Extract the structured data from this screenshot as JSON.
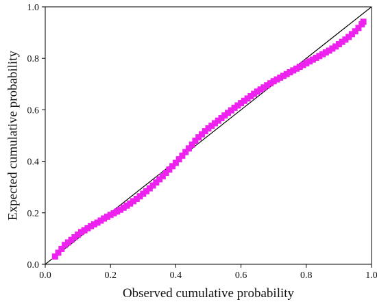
{
  "chart_data": {
    "type": "scatter",
    "title": "",
    "xlabel": "Observed cumulative probability",
    "ylabel": "Expected cumulative probability",
    "xlim": [
      0.0,
      1.0
    ],
    "ylim": [
      0.0,
      1.0
    ],
    "x_ticks": [
      "0.0",
      "0.2",
      "0.4",
      "0.6",
      "0.8",
      "1.0"
    ],
    "y_ticks": [
      "0.0",
      "0.2",
      "0.4",
      "0.6",
      "0.8",
      "1.0"
    ],
    "grid": false,
    "reference_line": {
      "from": [
        0,
        0
      ],
      "to": [
        1,
        1
      ],
      "color": "#000000"
    },
    "series": [
      {
        "marker": "square",
        "color": "#ee22ee",
        "points": [
          [
            0.03,
            0.03
          ],
          [
            0.04,
            0.045
          ],
          [
            0.05,
            0.06
          ],
          [
            0.06,
            0.075
          ],
          [
            0.07,
            0.085
          ],
          [
            0.08,
            0.095
          ],
          [
            0.09,
            0.105
          ],
          [
            0.1,
            0.115
          ],
          [
            0.11,
            0.125
          ],
          [
            0.12,
            0.132
          ],
          [
            0.13,
            0.14
          ],
          [
            0.14,
            0.148
          ],
          [
            0.15,
            0.155
          ],
          [
            0.16,
            0.162
          ],
          [
            0.17,
            0.17
          ],
          [
            0.18,
            0.178
          ],
          [
            0.19,
            0.185
          ],
          [
            0.2,
            0.192
          ],
          [
            0.21,
            0.198
          ],
          [
            0.22,
            0.205
          ],
          [
            0.23,
            0.212
          ],
          [
            0.24,
            0.22
          ],
          [
            0.25,
            0.228
          ],
          [
            0.26,
            0.236
          ],
          [
            0.27,
            0.245
          ],
          [
            0.28,
            0.254
          ],
          [
            0.29,
            0.264
          ],
          [
            0.3,
            0.274
          ],
          [
            0.31,
            0.284
          ],
          [
            0.32,
            0.295
          ],
          [
            0.33,
            0.306
          ],
          [
            0.34,
            0.318
          ],
          [
            0.35,
            0.33
          ],
          [
            0.36,
            0.342
          ],
          [
            0.37,
            0.355
          ],
          [
            0.38,
            0.368
          ],
          [
            0.39,
            0.381
          ],
          [
            0.4,
            0.394
          ],
          [
            0.41,
            0.408
          ],
          [
            0.42,
            0.422
          ],
          [
            0.43,
            0.436
          ],
          [
            0.44,
            0.45
          ],
          [
            0.45,
            0.465
          ],
          [
            0.46,
            0.48
          ],
          [
            0.47,
            0.493
          ],
          [
            0.48,
            0.505
          ],
          [
            0.49,
            0.517
          ],
          [
            0.5,
            0.528
          ],
          [
            0.51,
            0.538
          ],
          [
            0.52,
            0.548
          ],
          [
            0.53,
            0.558
          ],
          [
            0.54,
            0.568
          ],
          [
            0.55,
            0.578
          ],
          [
            0.56,
            0.588
          ],
          [
            0.57,
            0.598
          ],
          [
            0.58,
            0.608
          ],
          [
            0.59,
            0.617
          ],
          [
            0.6,
            0.626
          ],
          [
            0.61,
            0.635
          ],
          [
            0.62,
            0.644
          ],
          [
            0.63,
            0.653
          ],
          [
            0.64,
            0.662
          ],
          [
            0.65,
            0.671
          ],
          [
            0.66,
            0.679
          ],
          [
            0.67,
            0.687
          ],
          [
            0.68,
            0.695
          ],
          [
            0.69,
            0.703
          ],
          [
            0.7,
            0.711
          ],
          [
            0.71,
            0.718
          ],
          [
            0.72,
            0.725
          ],
          [
            0.73,
            0.732
          ],
          [
            0.74,
            0.739
          ],
          [
            0.75,
            0.746
          ],
          [
            0.76,
            0.753
          ],
          [
            0.77,
            0.76
          ],
          [
            0.78,
            0.767
          ],
          [
            0.79,
            0.774
          ],
          [
            0.8,
            0.781
          ],
          [
            0.81,
            0.788
          ],
          [
            0.82,
            0.795
          ],
          [
            0.83,
            0.802
          ],
          [
            0.84,
            0.809
          ],
          [
            0.85,
            0.816
          ],
          [
            0.86,
            0.823
          ],
          [
            0.87,
            0.83
          ],
          [
            0.88,
            0.838
          ],
          [
            0.89,
            0.846
          ],
          [
            0.9,
            0.855
          ],
          [
            0.91,
            0.864
          ],
          [
            0.92,
            0.873
          ],
          [
            0.93,
            0.883
          ],
          [
            0.94,
            0.894
          ],
          [
            0.95,
            0.905
          ],
          [
            0.96,
            0.918
          ],
          [
            0.97,
            0.932
          ],
          [
            0.975,
            0.942
          ]
        ]
      }
    ]
  }
}
